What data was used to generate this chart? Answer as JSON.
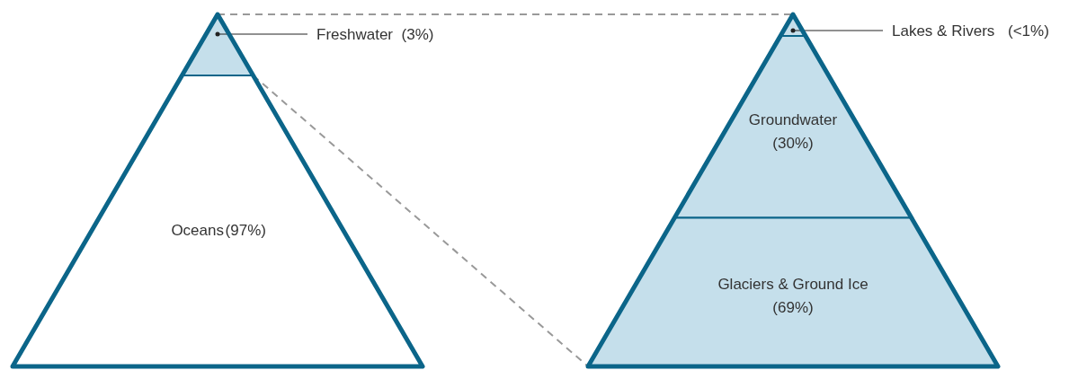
{
  "chart_data": [
    {
      "type": "other",
      "categories": [
        "Freshwater",
        "Oceans"
      ],
      "values": [
        3,
        97
      ],
      "value_labels": [
        "(3%)",
        "(97%)"
      ],
      "colors": [
        "#c5dfeb",
        "#ffffff"
      ]
    },
    {
      "type": "other",
      "categories": [
        "Lakes & Rivers",
        "Groundwater",
        "Glaciers & Ground Ice"
      ],
      "values": [
        null,
        30,
        69
      ],
      "value_labels": [
        "(<1%)",
        "(30%)",
        "(69%)"
      ],
      "colors": [
        "#c5dfeb",
        "#c5dfeb",
        "#c5dfeb"
      ]
    }
  ]
}
